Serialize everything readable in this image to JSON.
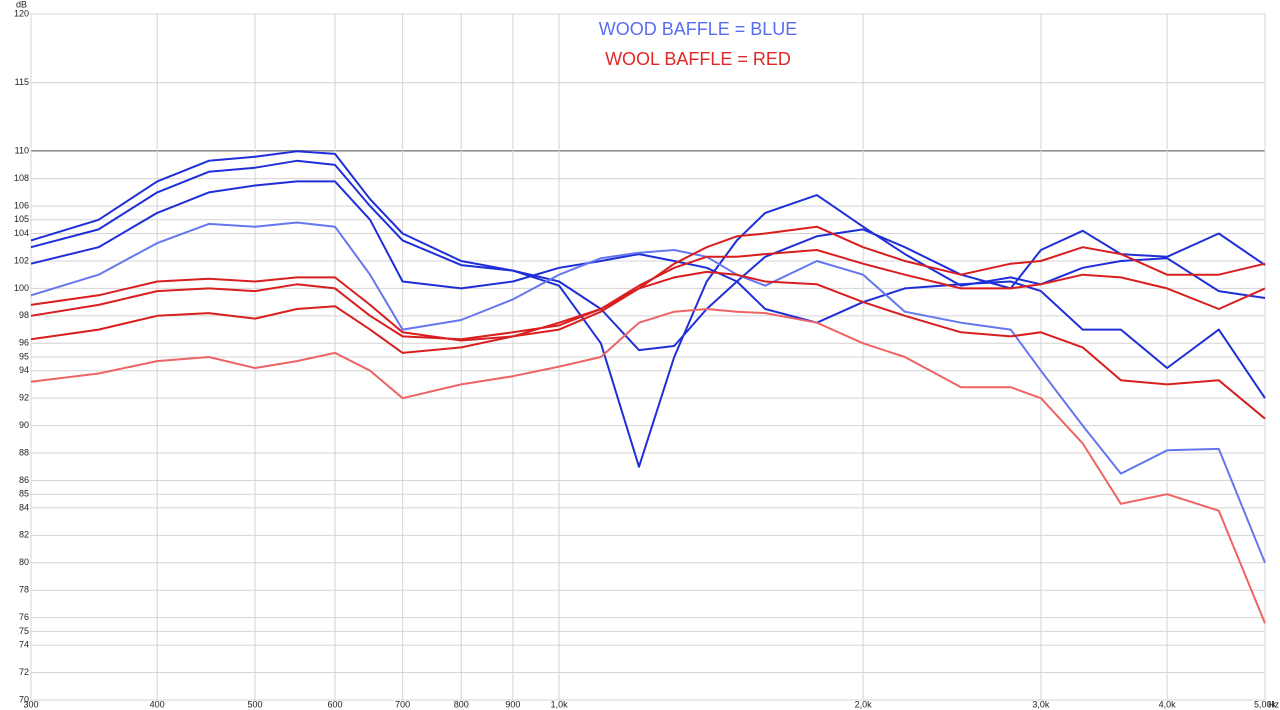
{
  "chart_data": {
    "type": "line",
    "log_x": true,
    "grid": true,
    "x_label": "Hz",
    "y_label": "dB",
    "annotations": [
      {
        "text": "WOOD BAFFLE = BLUE",
        "color": "#5a6cf0"
      },
      {
        "text": "WOOL BAFFLE = RED",
        "color": "#e02828"
      }
    ],
    "xlim": [
      300,
      5000
    ],
    "ylim": [
      70,
      120
    ],
    "xticks": [
      300,
      400,
      500,
      600,
      700,
      800,
      900,
      {
        "value": 1000,
        "label": "1,0k"
      },
      {
        "value": 2000,
        "label": "2,0k"
      },
      {
        "value": 3000,
        "label": "3,0k"
      },
      {
        "value": 4000,
        "label": "4,0k"
      },
      {
        "value": 5000,
        "label": "5,00k"
      }
    ],
    "yticks": [
      120,
      115,
      110,
      108,
      106,
      105,
      104,
      102,
      100,
      98,
      96,
      95,
      94,
      92,
      90,
      88,
      86,
      85,
      84,
      82,
      80,
      78,
      76,
      75,
      74,
      72,
      70
    ],
    "x": [
      300,
      350,
      400,
      450,
      500,
      550,
      600,
      650,
      700,
      800,
      900,
      1000,
      1100,
      1200,
      1300,
      1400,
      1500,
      1600,
      1800,
      2000,
      2200,
      2500,
      2800,
      3000,
      3300,
      3600,
      4000,
      4500,
      5000
    ],
    "series": [
      {
        "color": "#1f2fd8",
        "values": [
          103.5,
          105,
          107.8,
          109.3,
          109.6,
          110,
          109.8,
          106.5,
          104,
          102,
          101.3,
          100.2,
          96,
          87,
          95,
          100.5,
          103.5,
          105.5,
          106.8,
          104.5,
          102.5,
          100.2,
          100.8,
          100.3,
          101.5,
          102,
          102.2,
          99.8,
          99.3
        ]
      },
      {
        "color": "#1f2fd8",
        "values": [
          103,
          104.3,
          107,
          108.5,
          108.8,
          109.3,
          109,
          106,
          103.5,
          101.7,
          101.3,
          100.5,
          98.5,
          95.5,
          95.8,
          98.5,
          100.5,
          102.3,
          103.8,
          104.3,
          103,
          101,
          100,
          102.8,
          104.2,
          102.5,
          102.3,
          104,
          101.7
        ]
      },
      {
        "color": "#1f2fd8",
        "values": [
          101.8,
          103,
          105.5,
          107,
          107.5,
          107.8,
          107.8,
          105,
          100.5,
          100,
          100.5,
          101.5,
          102,
          102.5,
          102,
          101.5,
          100.5,
          98.5,
          97.5,
          99,
          100,
          100.3,
          100.5,
          99.8,
          97,
          97,
          94.2,
          97,
          92
        ]
      },
      {
        "color": "#6577ee",
        "values": [
          99.5,
          101,
          103.3,
          104.7,
          104.5,
          104.8,
          104.5,
          101,
          97,
          97.7,
          99.2,
          101,
          102.2,
          102.6,
          102.8,
          102.3,
          101,
          100.2,
          102,
          101,
          98.3,
          97.5,
          97,
          94,
          90,
          86.5,
          88.2,
          88.3,
          80
        ]
      },
      {
        "color": "#d81e1e",
        "values": [
          98.8,
          99.5,
          100.5,
          100.7,
          100.5,
          100.8,
          100.8,
          98.8,
          96.8,
          96.2,
          96.5,
          97.5,
          98.5,
          100,
          101.8,
          103,
          103.8,
          104,
          104.5,
          103,
          102,
          101,
          101.8,
          102,
          103,
          102.5,
          101,
          101,
          101.8
        ]
      },
      {
        "color": "#d81e1e",
        "values": [
          98,
          98.8,
          99.8,
          100,
          99.8,
          100.3,
          100,
          98,
          96.5,
          96.3,
          96.8,
          97.3,
          98.5,
          100.2,
          101.5,
          102.3,
          102.3,
          102.5,
          102.8,
          101.8,
          101,
          100,
          100,
          100.3,
          101,
          100.8,
          100,
          98.5,
          100
        ]
      },
      {
        "color": "#d81e1e",
        "values": [
          96.3,
          97,
          98,
          98.2,
          97.8,
          98.5,
          98.7,
          97,
          95.3,
          95.7,
          96.5,
          97,
          98.3,
          100,
          100.8,
          101.2,
          101,
          100.5,
          100.3,
          99,
          98,
          96.8,
          96.5,
          96.8,
          95.7,
          93.3,
          93,
          93.3,
          90.5
        ]
      },
      {
        "color": "#ee6464",
        "values": [
          93.2,
          93.8,
          94.7,
          95,
          94.2,
          94.7,
          95.3,
          94,
          92,
          93,
          93.6,
          94.3,
          95,
          97.5,
          98.3,
          98.5,
          98.3,
          98.2,
          97.5,
          96,
          95,
          92.8,
          92.8,
          92,
          88.7,
          84.3,
          85,
          83.8,
          75.6
        ]
      }
    ]
  }
}
